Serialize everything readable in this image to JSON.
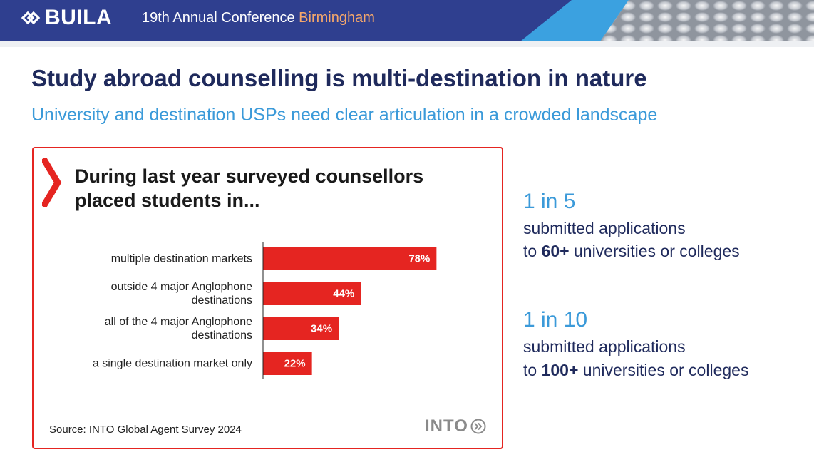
{
  "header": {
    "logo_text": "BUILA",
    "conference": "19th Annual Conference",
    "city": "Birmingham",
    "colors": {
      "navy": "#2f3f8f",
      "light_blue": "#3ba1e0",
      "city": "#f5a76b"
    }
  },
  "slide": {
    "title": "Study abroad counselling is multi-destination in nature",
    "subtitle": "University and destination USPs need clear articulation in a crowded landscape"
  },
  "card": {
    "title": "During last year surveyed counsellors placed students in...",
    "source": "Source: INTO Global Agent Survey 2024",
    "brand": "INTO",
    "accent": "#e52521"
  },
  "chart_data": {
    "type": "bar",
    "orientation": "horizontal",
    "categories": [
      [
        "multiple destination markets"
      ],
      [
        "outside 4 major Anglophone",
        "destinations"
      ],
      [
        "all of the 4 major Anglophone",
        "destinations"
      ],
      [
        "a single destination market only"
      ]
    ],
    "values": [
      78,
      44,
      34,
      22
    ],
    "value_labels": [
      "78%",
      "44%",
      "34%",
      "22%"
    ],
    "xlim": [
      0,
      100
    ],
    "bar_color": "#e52521",
    "grid": false,
    "legend": "none"
  },
  "stats": [
    {
      "headline": "1 in 5",
      "line1": "submitted applications",
      "line2_prefix": "to ",
      "line2_bold": "60+",
      "line2_suffix": " universities or colleges"
    },
    {
      "headline": "1 in 10",
      "line1": "submitted applications",
      "line2_prefix": "to ",
      "line2_bold": "100+",
      "line2_suffix": " universities or colleges"
    }
  ]
}
